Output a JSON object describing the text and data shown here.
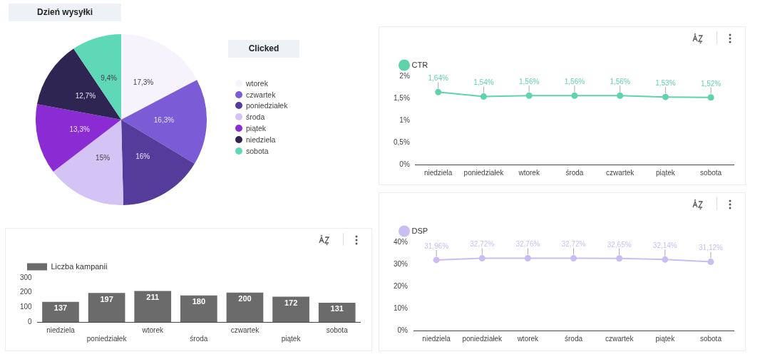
{
  "chart_data": [
    {
      "type": "pie",
      "title": "Dzień wysyłki",
      "legend_title": "Clicked",
      "legend": "right",
      "categories": [
        "wtorek",
        "czwartek",
        "poniedziałek",
        "środa",
        "piątek",
        "niedziela",
        "sobota"
      ],
      "values": [
        17.3,
        16.3,
        16,
        15,
        13.3,
        12.7,
        9.4
      ],
      "value_labels": [
        "17,3%",
        "16,3%",
        "16%",
        "15%",
        "13,3%",
        "12,7%",
        "9,4%"
      ],
      "colors": [
        "#f7f3fd",
        "#7b5bd6",
        "#553c9a",
        "#d4c4f5",
        "#8a2bd4",
        "#2f2552",
        "#5fd8b8"
      ]
    },
    {
      "type": "bar",
      "legend": "top left",
      "data_labels": true,
      "categories": [
        "niedziela",
        "poniedziałek",
        "wtorek",
        "środa",
        "czwartek",
        "piątek",
        "sobota"
      ],
      "ylim": [
        0,
        300
      ],
      "yticks": [
        0,
        100,
        200,
        300
      ],
      "series": [
        {
          "name": "Liczba kampanii",
          "color": "#6b6b6b",
          "values": [
            137,
            197,
            211,
            180,
            200,
            172,
            131
          ]
        }
      ]
    },
    {
      "type": "line",
      "legend": "top left",
      "marker": "circle",
      "categories": [
        "niedziela",
        "poniedziałek",
        "wtorek",
        "środa",
        "czwartek",
        "piątek",
        "sobota"
      ],
      "ylim": [
        0,
        2
      ],
      "yticks": [
        {
          "value": 0,
          "label": "0%"
        },
        {
          "value": 0.5,
          "label": "0,5%"
        },
        {
          "value": 1,
          "label": "1%"
        },
        {
          "value": 1.5,
          "label": "1,5%"
        },
        {
          "value": 2,
          "label": "2%"
        }
      ],
      "series": [
        {
          "name": "CTR",
          "color": "#5fd3a9",
          "values": [
            1.64,
            1.54,
            1.56,
            1.56,
            1.56,
            1.53,
            1.52
          ],
          "value_labels": [
            "1,64%",
            "1,54%",
            "1,56%",
            "1,56%",
            "1,56%",
            "1,53%",
            "1,52%"
          ]
        }
      ]
    },
    {
      "type": "line",
      "legend": "top left",
      "marker": "circle",
      "categories": [
        "niedziela",
        "poniedziałek",
        "wtorek",
        "środa",
        "czwartek",
        "piątek",
        "sobota"
      ],
      "ylim": [
        0,
        40
      ],
      "yticks": [
        {
          "value": 0,
          "label": "0%"
        },
        {
          "value": 10,
          "label": "10%"
        },
        {
          "value": 20,
          "label": "20%"
        },
        {
          "value": 30,
          "label": "30%"
        },
        {
          "value": 40,
          "label": "40%"
        }
      ],
      "series": [
        {
          "name": "DSP",
          "color": "#c9bdf2",
          "values": [
            31.96,
            32.72,
            32.76,
            32.72,
            32.65,
            32.14,
            31.12
          ],
          "value_labels": [
            "31,96%",
            "32,72%",
            "32,76%",
            "32,72%",
            "32,65%",
            "32,14%",
            "31,12%"
          ]
        }
      ]
    }
  ]
}
